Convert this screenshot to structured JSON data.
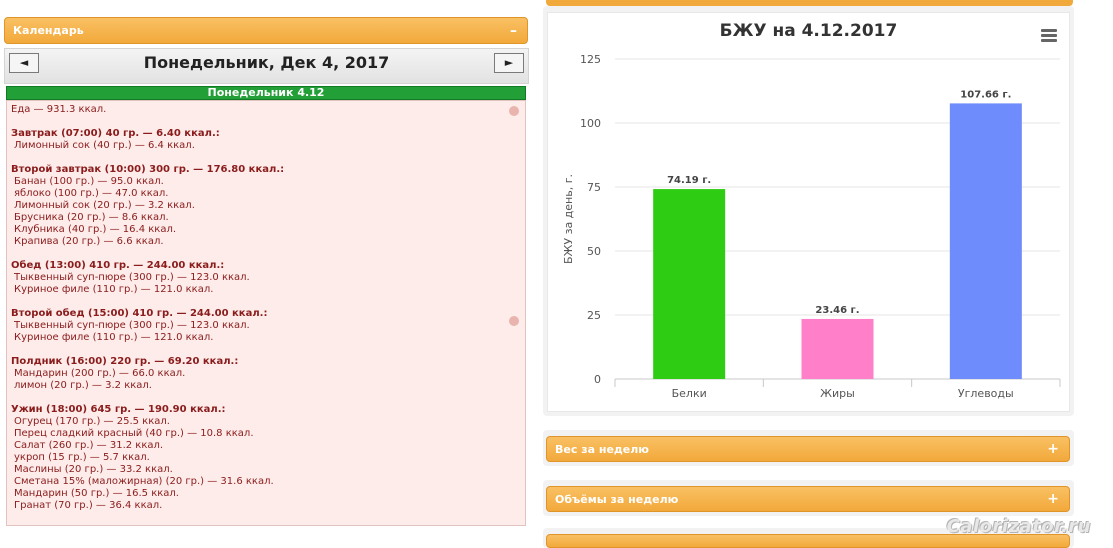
{
  "calendar": {
    "header_label": "Календарь",
    "collapse_symbol": "–",
    "prev_symbol": "◄",
    "next_symbol": "►",
    "day_title": "Понедельник, Дек 4, 2017",
    "day_bar": "Понедельник 4.12"
  },
  "food_log": {
    "total": "Еда — 931.3 ккал.",
    "meals": [
      {
        "title": "Завтрак (07:00) 40 гр. — 6.40 ккал.:",
        "items": [
          "Лимонный сок (40 гр.) — 6.4 ккал."
        ]
      },
      {
        "title": "Второй завтрак (10:00) 300 гр. — 176.80 ккал.:",
        "items": [
          "Банан (100 гр.) — 95.0 ккал.",
          "яблоко (100 гр.) — 47.0 ккал.",
          "Лимонный сок (20 гр.) — 3.2 ккал.",
          "Брусника (20 гр.) — 8.6 ккал.",
          "Клубника (40 гр.) — 16.4 ккал.",
          "Крапива (20 гр.) — 6.6 ккал."
        ]
      },
      {
        "title": "Обед (13:00) 410 гр. — 244.00 ккал.:",
        "items": [
          "Тыквенный суп-пюре (300 гр.) — 123.0 ккал.",
          "Куриное филе (110 гр.) — 121.0 ккал."
        ]
      },
      {
        "title": "Второй обед (15:00) 410 гр. — 244.00 ккал.:",
        "items": [
          "Тыквенный суп-пюре (300 гр.) — 123.0 ккал.",
          "Куриное филе (110 гр.) — 121.0 ккал."
        ]
      },
      {
        "title": "Полдник (16:00) 220 гр. — 69.20 ккал.:",
        "items": [
          "Мандарин (200 гр.) — 66.0 ккал.",
          "лимон (20 гр.) — 3.2 ккал."
        ]
      },
      {
        "title": "Ужин (18:00) 645 гр. — 190.90 ккал.:",
        "items": [
          "Огурец (170 гр.) — 25.5 ккал.",
          "Перец сладкий красный (40 гр.) — 10.8 ккал.",
          "Салат (260 гр.) — 31.2 ккал.",
          "укроп (15 гр.) — 5.7 ккал.",
          "Маслины (20 гр.) — 33.2 ккал.",
          "Сметана 15% (маложирная) (20 гр.) — 31.6 ккал.",
          "Мандарин (50 гр.) — 16.5 ккал.",
          "Гранат (70 гр.) — 36.4 ккал."
        ]
      }
    ]
  },
  "chart_data": {
    "type": "bar",
    "title": "БЖУ на 4.12.2017",
    "xlabel": "",
    "ylabel": "БЖУ за день, г.",
    "categories": [
      "Белки",
      "Жиры",
      "Углеводы"
    ],
    "values": [
      74.19,
      23.46,
      107.66
    ],
    "data_labels": [
      "74.19 г.",
      "23.46 г.",
      "107.66 г."
    ],
    "colors": [
      "#2ecc12",
      "#ff7fc8",
      "#6e8cfb"
    ],
    "ylim": [
      0,
      125
    ],
    "yticks": [
      "0",
      "25",
      "50",
      "75",
      "100",
      "125"
    ],
    "grid": true,
    "legend": "none"
  },
  "panels": {
    "weight_label": "Вес за неделю",
    "volume_label": "Объёмы за неделю",
    "expand_symbol": "+"
  },
  "watermark": "Calorizator.ru"
}
